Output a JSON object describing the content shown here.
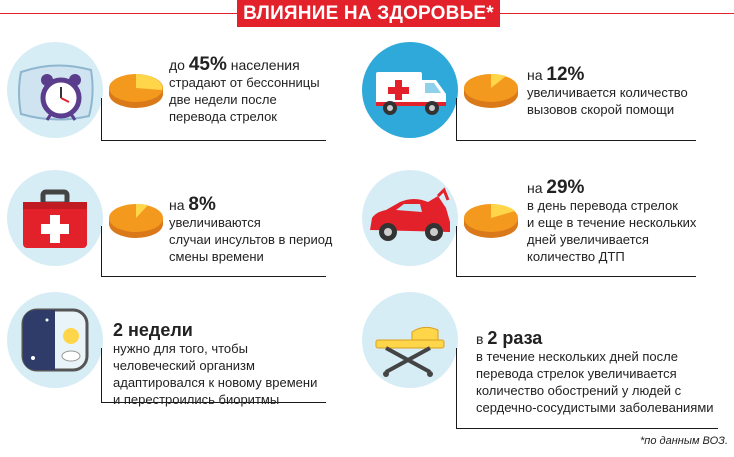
{
  "title": "ВЛИЯНИЕ НА ЗДОРОВЬЕ*",
  "cards": [
    {
      "prefix": "до ",
      "value": "45%",
      "line1": " населения",
      "lines": [
        "страдают от бессонницы",
        "две недели после",
        "перевода стрелок"
      ],
      "icon": "alarm-clock-pillow-icon"
    },
    {
      "prefix": "на ",
      "value": "12%",
      "line1": "",
      "lines": [
        "увеличивается количество",
        "вызовов скорой помощи"
      ],
      "icon": "ambulance-icon"
    },
    {
      "prefix": "на ",
      "value": "8%",
      "line1": "",
      "lines": [
        "увеличиваются",
        "случаи инсультов в период",
        "смены времени"
      ],
      "icon": "first-aid-kit-icon"
    },
    {
      "prefix": "на ",
      "value": "29%",
      "line1": "",
      "lines": [
        "в день перевода стрелок",
        "и еще в течение нескольких",
        "дней увеличивается",
        "количество ДТП"
      ],
      "icon": "crashed-car-icon"
    },
    {
      "prefix": "",
      "value": "2 недели",
      "line1": "",
      "lines": [
        "нужно для того, чтобы",
        "человеческий организм",
        "адаптировался к новому времени",
        "и перестроились биоритмы"
      ],
      "icon": "day-night-icon"
    },
    {
      "prefix": "в ",
      "value": "2 раза",
      "line1": "",
      "lines": [
        "в течение нескольких дней после",
        "перевода стрелок увеличивается",
        "количество обострений у людей с",
        "сердечно-сосудистыми заболеваниями"
      ],
      "icon": "stretcher-icon"
    }
  ],
  "footnote": "*по данным ВОЗ.",
  "colors": {
    "accent": "#e3212b",
    "pie_orange": "#f39a1e",
    "pie_yellow": "#ffd64a",
    "circle": "#cfe8f3"
  }
}
